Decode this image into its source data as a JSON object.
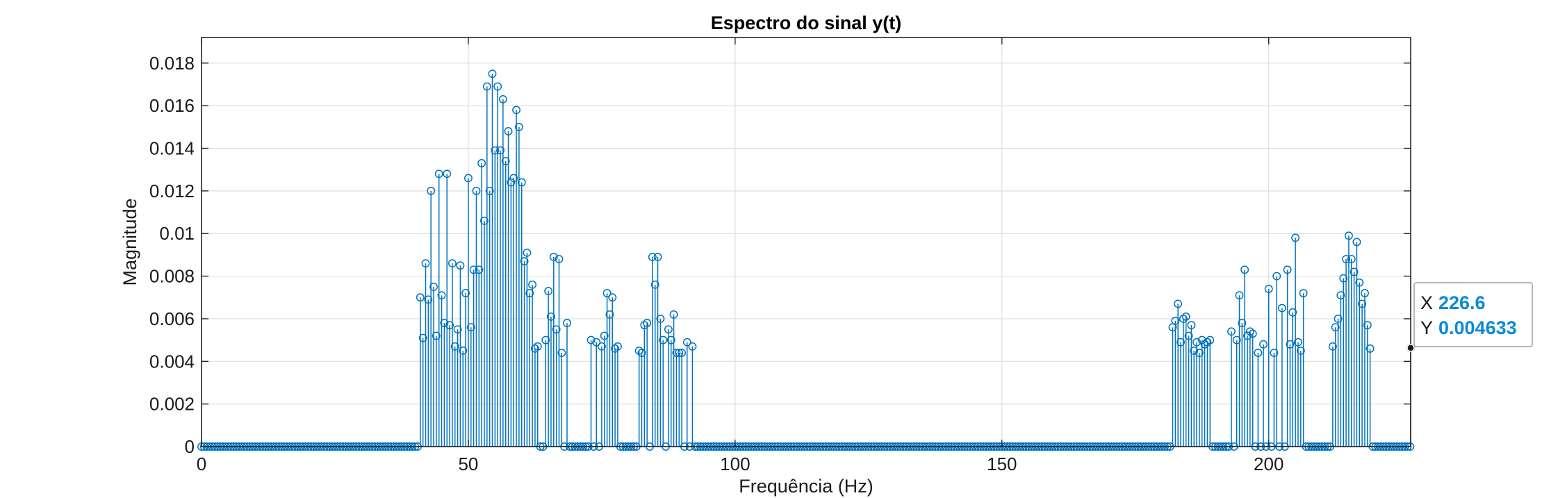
{
  "chart_data": {
    "type": "stem",
    "title": "Espectro do sinal y(t)",
    "xlabel": "Frequência (Hz)",
    "ylabel": "Magnitude",
    "xlim": [
      0,
      226.6
    ],
    "ylim": [
      0,
      0.0192
    ],
    "xticks": [
      0,
      50,
      100,
      150,
      200
    ],
    "yticks": [
      0,
      0.002,
      0.004,
      0.006,
      0.008,
      0.01,
      0.012,
      0.014,
      0.016,
      0.018
    ],
    "ytick_labels": [
      "0",
      "0.002",
      "0.004",
      "0.006",
      "0.008",
      "0.01",
      "0.012",
      "0.014",
      "0.016",
      "0.018"
    ],
    "grid": true,
    "color": "#0072BD",
    "x_step": 0.5,
    "points": [
      [
        41.0,
        0.007
      ],
      [
        41.5,
        0.0051
      ],
      [
        42.0,
        0.0086
      ],
      [
        42.5,
        0.0069
      ],
      [
        43.0,
        0.012
      ],
      [
        43.5,
        0.0075
      ],
      [
        44.0,
        0.0052
      ],
      [
        44.5,
        0.0128
      ],
      [
        45.0,
        0.0071
      ],
      [
        45.5,
        0.0058
      ],
      [
        46.0,
        0.0128
      ],
      [
        46.5,
        0.0057
      ],
      [
        47.0,
        0.0086
      ],
      [
        47.5,
        0.0047
      ],
      [
        48.0,
        0.0055
      ],
      [
        48.5,
        0.0085
      ],
      [
        49.0,
        0.0045
      ],
      [
        49.5,
        0.0072
      ],
      [
        50.0,
        0.0126
      ],
      [
        50.5,
        0.0056
      ],
      [
        51.0,
        0.0083
      ],
      [
        51.5,
        0.012
      ],
      [
        52.0,
        0.0083
      ],
      [
        52.5,
        0.0133
      ],
      [
        53.0,
        0.0106
      ],
      [
        53.5,
        0.0169
      ],
      [
        54.0,
        0.012
      ],
      [
        54.5,
        0.0175
      ],
      [
        55.0,
        0.0139
      ],
      [
        55.5,
        0.0169
      ],
      [
        56.0,
        0.0139
      ],
      [
        56.5,
        0.0163
      ],
      [
        57.0,
        0.0134
      ],
      [
        57.5,
        0.0148
      ],
      [
        58.0,
        0.0124
      ],
      [
        58.5,
        0.0126
      ],
      [
        59.0,
        0.0158
      ],
      [
        59.5,
        0.015
      ],
      [
        60.0,
        0.0124
      ],
      [
        60.5,
        0.0087
      ],
      [
        61.0,
        0.0091
      ],
      [
        61.5,
        0.0072
      ],
      [
        62.0,
        0.0076
      ],
      [
        62.5,
        0.0046
      ],
      [
        63.0,
        0.0047
      ],
      [
        64.5,
        0.005
      ],
      [
        65.0,
        0.0073
      ],
      [
        65.5,
        0.0061
      ],
      [
        66.0,
        0.0089
      ],
      [
        66.5,
        0.0055
      ],
      [
        67.0,
        0.0088
      ],
      [
        67.5,
        0.0044
      ],
      [
        68.5,
        0.0058
      ],
      [
        73.0,
        0.005
      ],
      [
        74.0,
        0.0049
      ],
      [
        75.0,
        0.0047
      ],
      [
        75.5,
        0.0052
      ],
      [
        76.0,
        0.0072
      ],
      [
        76.5,
        0.0062
      ],
      [
        77.0,
        0.007
      ],
      [
        77.5,
        0.0046
      ],
      [
        78.0,
        0.0047
      ],
      [
        82.0,
        0.0045
      ],
      [
        82.5,
        0.0044
      ],
      [
        83.0,
        0.0057
      ],
      [
        83.5,
        0.0058
      ],
      [
        84.5,
        0.0089
      ],
      [
        85.0,
        0.0076
      ],
      [
        85.5,
        0.0089
      ],
      [
        86.0,
        0.006
      ],
      [
        86.5,
        0.005
      ],
      [
        87.5,
        0.0055
      ],
      [
        88.0,
        0.005
      ],
      [
        88.5,
        0.0062
      ],
      [
        89.0,
        0.0044
      ],
      [
        89.5,
        0.0044
      ],
      [
        90.0,
        0.0044
      ],
      [
        91.0,
        0.0049
      ],
      [
        92.0,
        0.0047
      ],
      [
        182.0,
        0.0056
      ],
      [
        182.5,
        0.0059
      ],
      [
        183.0,
        0.0067
      ],
      [
        183.5,
        0.0049
      ],
      [
        184.0,
        0.006
      ],
      [
        184.5,
        0.0061
      ],
      [
        185.0,
        0.0052
      ],
      [
        185.5,
        0.0057
      ],
      [
        186.0,
        0.0045
      ],
      [
        186.5,
        0.0049
      ],
      [
        187.0,
        0.0044
      ],
      [
        187.5,
        0.005
      ],
      [
        188.0,
        0.0048
      ],
      [
        188.5,
        0.0049
      ],
      [
        189.0,
        0.005
      ],
      [
        193.0,
        0.0054
      ],
      [
        194.0,
        0.005
      ],
      [
        194.5,
        0.0071
      ],
      [
        195.0,
        0.0058
      ],
      [
        195.5,
        0.0083
      ],
      [
        196.0,
        0.0052
      ],
      [
        196.5,
        0.0054
      ],
      [
        197.0,
        0.0053
      ],
      [
        198.0,
        0.0044
      ],
      [
        199.0,
        0.0048
      ],
      [
        200.0,
        0.0074
      ],
      [
        201.0,
        0.0044
      ],
      [
        201.5,
        0.008
      ],
      [
        202.5,
        0.0065
      ],
      [
        203.5,
        0.0083
      ],
      [
        204.0,
        0.0048
      ],
      [
        204.5,
        0.0063
      ],
      [
        205.0,
        0.0098
      ],
      [
        205.5,
        0.0049
      ],
      [
        206.0,
        0.0045
      ],
      [
        206.5,
        0.0072
      ],
      [
        212.0,
        0.0047
      ],
      [
        212.5,
        0.0056
      ],
      [
        213.0,
        0.006
      ],
      [
        213.5,
        0.0071
      ],
      [
        214.0,
        0.0079
      ],
      [
        214.5,
        0.0088
      ],
      [
        215.0,
        0.0099
      ],
      [
        215.5,
        0.0088
      ],
      [
        216.0,
        0.0082
      ],
      [
        216.5,
        0.0096
      ],
      [
        217.0,
        0.0077
      ],
      [
        217.5,
        0.0067
      ],
      [
        218.0,
        0.0072
      ],
      [
        218.5,
        0.0057
      ],
      [
        219.0,
        0.0046
      ],
      [
        226.6,
        0.004633
      ]
    ],
    "datatip": {
      "x_label": "X",
      "x_value": "226.6",
      "y_label": "Y",
      "y_value": "0.004633",
      "x": 226.6,
      "y": 0.004633,
      "value_color": "#0a8ad6"
    }
  }
}
